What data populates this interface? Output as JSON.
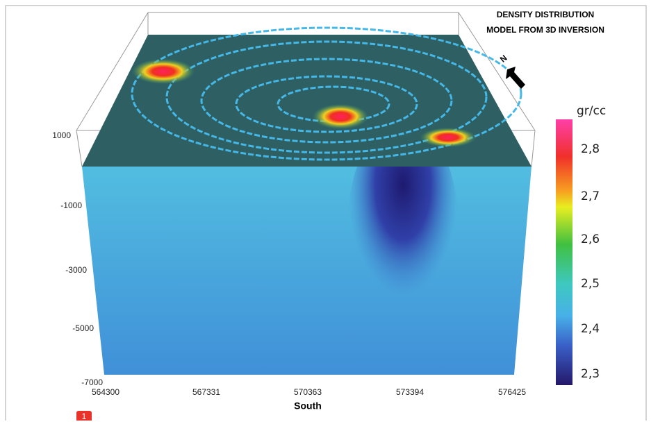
{
  "figure": {
    "title": [
      "DENSITY DISTRIBUTION",
      "MODEL FROM 3D  INVERSION"
    ],
    "north": "N",
    "depth_ticks": [
      "1000",
      "-1000",
      "-3000",
      "-5000",
      "-7000"
    ],
    "easting_ticks": [
      "564300",
      "567331",
      "570363",
      "573394",
      "576425"
    ],
    "x_label": "South",
    "colorbar": {
      "unit": "gr/cc",
      "ticks": [
        "2,8",
        "2,7",
        "2,6",
        "2,5",
        "2,4",
        "2,3"
      ]
    },
    "badge": "1"
  }
}
